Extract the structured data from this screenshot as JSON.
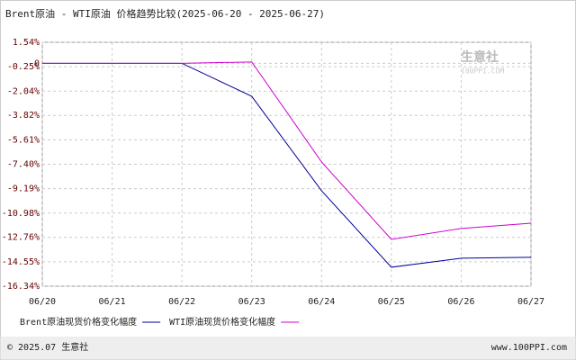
{
  "chart_data": {
    "type": "line",
    "title": "Brent原油 - WTI原油 价格趋势比较(2025-06-20 - 2025-06-27)",
    "categories": [
      "06/20",
      "06/21",
      "06/22",
      "06/23",
      "06/24",
      "06/25",
      "06/26",
      "06/27"
    ],
    "series": [
      {
        "name": "Brent原油现货价格变化幅度",
        "color": "#000099",
        "values": [
          0,
          0,
          0,
          -2.42,
          -9.34,
          -14.95,
          -14.29,
          -14.22
        ]
      },
      {
        "name": "WTI原油现货价格变化幅度",
        "color": "#cc00cc",
        "values": [
          0,
          0,
          0,
          0.1,
          -7.23,
          -12.91,
          -12.11,
          -11.72
        ]
      }
    ],
    "ylim": [
      -16.34,
      1.54
    ],
    "yticks": [
      {
        "value": 1.54,
        "label": "1.54%"
      },
      0,
      {
        "value": -0.25,
        "label": "-0.25%"
      },
      {
        "value": -2.04,
        "label": "-2.04%"
      },
      {
        "value": -3.82,
        "label": "-3.82%"
      },
      {
        "value": -5.61,
        "label": "-5.61%"
      },
      {
        "value": -7.4,
        "label": "-7.40%"
      },
      {
        "value": -9.19,
        "label": "-9.19%"
      },
      {
        "value": -10.98,
        "label": "-10.98%"
      },
      {
        "value": -12.76,
        "label": "-12.76%"
      },
      {
        "value": -14.55,
        "label": "-14.55%"
      },
      {
        "value": -16.34,
        "label": "-16.34%"
      }
    ],
    "grid": true,
    "watermark": {
      "text": "生意社",
      "sub": "100PPI.COM"
    },
    "footer": {
      "left": "© 2025.07 生意社",
      "right": "www.100PPI.com"
    }
  }
}
